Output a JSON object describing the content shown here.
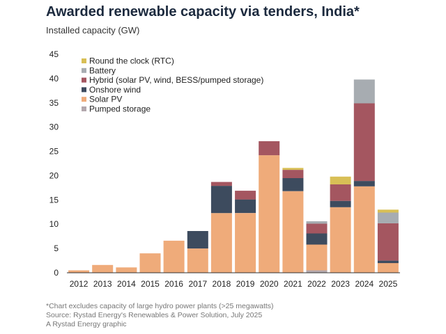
{
  "title": "Awarded renewable capacity via tenders, India*",
  "subtitle": "Installed capacity (GW)",
  "footnotes": [
    "*Chart excludes capacity of large hydro power plants (>25 megawatts)",
    "Source: Rystad Energy's Renewables & Power Solution, July 2025",
    "A Rystad Energy graphic"
  ],
  "chart_data": {
    "type": "bar",
    "stacked": true,
    "title": "Awarded renewable capacity via tenders, India*",
    "xlabel": "",
    "ylabel": "Installed capacity (GW)",
    "ylim": [
      0,
      45
    ],
    "yticks": [
      0,
      5,
      10,
      15,
      20,
      25,
      30,
      35,
      40,
      45
    ],
    "grid": false,
    "legend_position": "top-left",
    "categories": [
      "2012",
      "2013",
      "2014",
      "2015",
      "2016",
      "2017",
      "2018",
      "2019",
      "2020",
      "2021",
      "2022",
      "2023",
      "2024",
      "2025"
    ],
    "series": [
      {
        "name": "Pumped storage",
        "color": "#b3a8ad",
        "values": [
          0,
          0,
          0,
          0,
          0,
          0,
          0,
          0,
          0,
          0,
          0.5,
          0,
          0,
          0
        ]
      },
      {
        "name": "Solar PV",
        "color": "#efab7a",
        "values": [
          0.5,
          1.6,
          1.1,
          4.0,
          6.6,
          5.0,
          12.3,
          12.3,
          24.2,
          16.8,
          5.3,
          13.5,
          17.8,
          2.0
        ]
      },
      {
        "name": "Onshore wind",
        "color": "#3d4b5e",
        "values": [
          0,
          0,
          0,
          0,
          0,
          3.6,
          5.6,
          2.8,
          0,
          2.7,
          2.3,
          1.3,
          1.1,
          0.5
        ]
      },
      {
        "name": "Hybrid (solar PV, wind, BESS/pumped storage)",
        "color": "#a45660",
        "values": [
          0,
          0,
          0,
          0,
          0,
          0,
          0.8,
          1.8,
          2.9,
          1.7,
          2.0,
          3.4,
          16.0,
          7.7
        ]
      },
      {
        "name": "Battery",
        "color": "#a7acb1",
        "values": [
          0,
          0,
          0,
          0,
          0,
          0,
          0,
          0,
          0,
          0,
          0.5,
          0,
          4.9,
          2.2
        ]
      },
      {
        "name": "Round the clock (RTC)",
        "color": "#d8bf56",
        "values": [
          0,
          0,
          0,
          0,
          0,
          0,
          0,
          0,
          0,
          0.4,
          0,
          1.6,
          0,
          0.6
        ]
      }
    ],
    "legend_order": [
      "Round the clock (RTC)",
      "Battery",
      "Hybrid (solar PV, wind, BESS/pumped storage)",
      "Onshore wind",
      "Solar PV",
      "Pumped storage"
    ]
  }
}
